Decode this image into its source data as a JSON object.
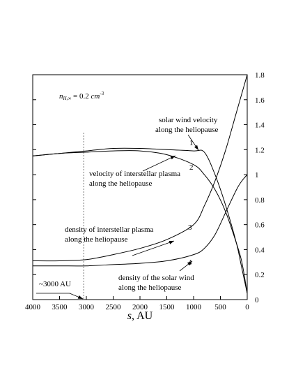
{
  "chart_data": {
    "type": "line",
    "x_axis": {
      "label": "s, AU",
      "label_italic_part": "s",
      "label_rest": ", AU",
      "range": [
        4000,
        0
      ],
      "reversed": true,
      "ticks": [
        4000,
        3500,
        3000,
        2500,
        2000,
        1500,
        1000,
        500,
        0
      ],
      "tick_labels": [
        "4000",
        "3500",
        "3000",
        "2500",
        "2000",
        "1500",
        "1000",
        "500",
        "0"
      ]
    },
    "y_axis": {
      "side": "right",
      "range": [
        0,
        1.8
      ],
      "ticks": [
        0,
        0.2,
        0.4,
        0.6,
        0.8,
        1,
        1.2,
        1.4,
        1.6,
        1.8
      ],
      "tick_labels": [
        "0",
        "0.2",
        "0.4",
        "0.6",
        "0.8",
        "1",
        "1.2",
        "1.4",
        "1.6",
        "1.8"
      ]
    },
    "grid": false,
    "legend": "none",
    "parameter_label": {
      "var": "n",
      "sub": "H,∞",
      "eq": " = 0.2 ",
      "unit": "cm",
      "sup": "-3"
    },
    "series": [
      {
        "id": "1",
        "x": [
          4000,
          3500,
          3000,
          2500,
          2000,
          1500,
          1000,
          800,
          600,
          400,
          200,
          100,
          0
        ],
        "y": [
          1.15,
          1.17,
          1.19,
          1.21,
          1.21,
          1.2,
          1.19,
          1.18,
          1.0,
          0.75,
          0.45,
          0.25,
          0.05
        ]
      },
      {
        "id": "2",
        "x": [
          4000,
          3500,
          3000,
          2500,
          2000,
          1500,
          1000,
          800,
          600,
          400,
          200,
          100,
          0
        ],
        "y": [
          1.15,
          1.17,
          1.18,
          1.19,
          1.19,
          1.16,
          1.08,
          1.0,
          0.88,
          0.7,
          0.45,
          0.3,
          0.05
        ]
      },
      {
        "id": "3",
        "x": [
          4000,
          3500,
          3000,
          2500,
          2000,
          1500,
          1000,
          800,
          600,
          400,
          200,
          100,
          0
        ],
        "y": [
          0.31,
          0.31,
          0.32,
          0.36,
          0.41,
          0.48,
          0.6,
          0.75,
          0.95,
          1.2,
          1.5,
          1.65,
          1.8
        ]
      },
      {
        "id": "4",
        "x": [
          4000,
          3500,
          3000,
          2500,
          2000,
          1500,
          1000,
          800,
          600,
          400,
          200,
          100,
          0
        ],
        "y": [
          0.27,
          0.27,
          0.27,
          0.28,
          0.29,
          0.31,
          0.36,
          0.41,
          0.52,
          0.7,
          0.88,
          0.95,
          1.0
        ]
      }
    ],
    "annotations": [
      {
        "line1": "solar wind velocity",
        "line2": "along the heliopause",
        "series": "1"
      },
      {
        "line1": "velocity of interstellar plasma",
        "line2": "along the heliopause",
        "series": "2"
      },
      {
        "line1": "density of interstellar plasma",
        "line2": "along the heliopause",
        "series": "3"
      },
      {
        "line1": "density of the solar wind",
        "line2": "along the heliopause",
        "series": "4"
      }
    ],
    "marker": {
      "x": 3050,
      "label": "~3000 AU",
      "style": "dashed"
    }
  }
}
